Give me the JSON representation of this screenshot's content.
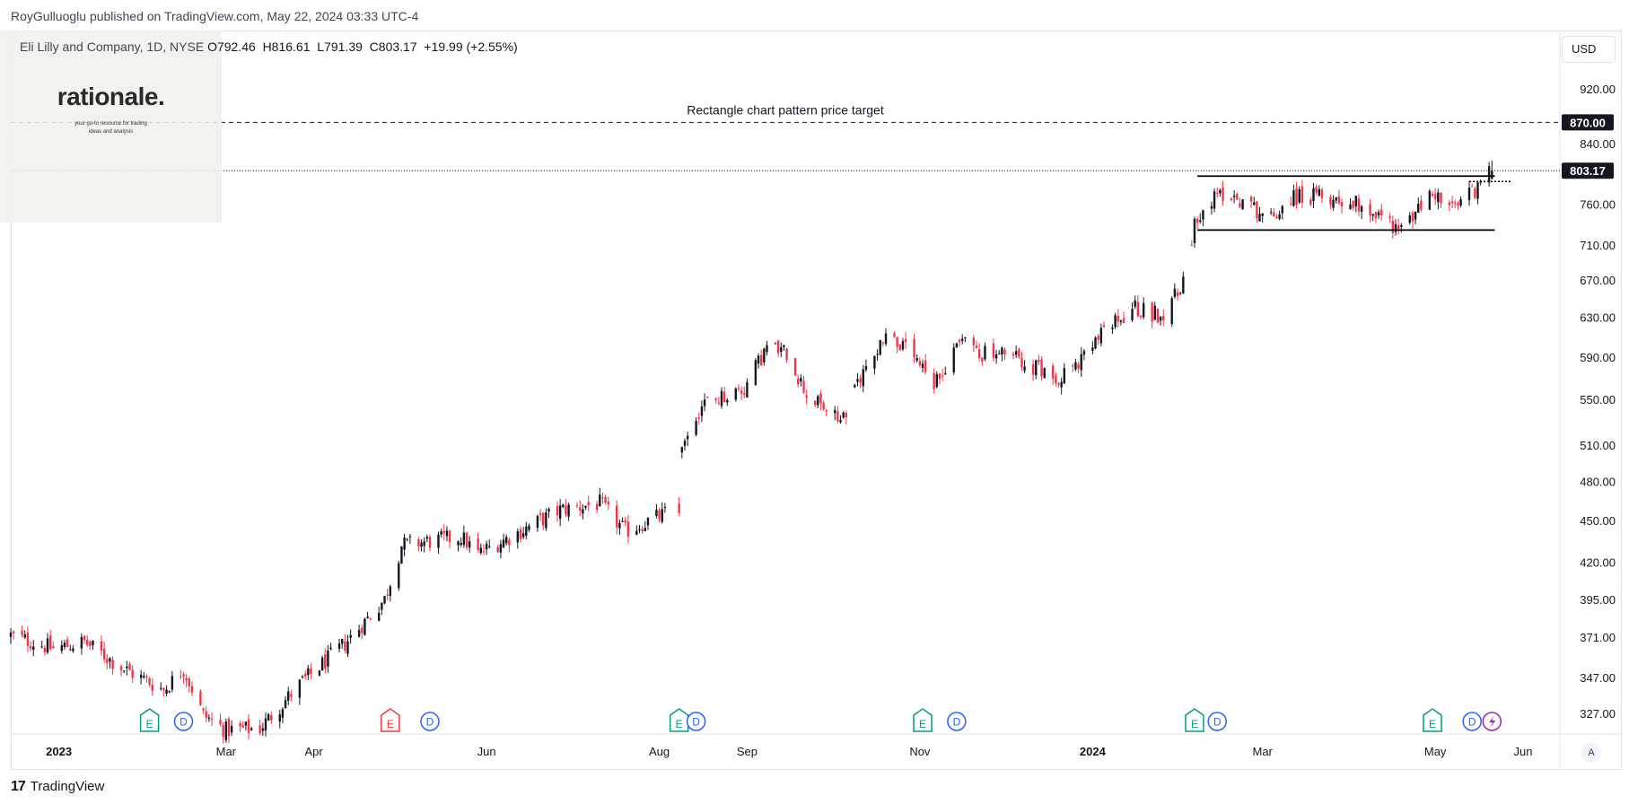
{
  "header": {
    "published_by": "RoyGulluoglu published on TradingView.com, May 22, 2024 03:33 UTC-4"
  },
  "legend": {
    "symbol": "Eli Lilly and Company, 1D, NYSE",
    "open": "O792.46",
    "high": "H816.61",
    "low": "L791.39",
    "close": "C803.17",
    "change": "+19.99 (+2.55%)"
  },
  "logo": {
    "word": "rationale.",
    "tagline_1": "your go-to resource for trading",
    "tagline_2": "ideas and analysis"
  },
  "currency_button": "USD",
  "auto_scale_button": "A",
  "footer": {
    "brand": "TradingView",
    "brand_mark": "17"
  },
  "colors": {
    "up": "#131722",
    "down": "#f23645",
    "earnings": "#089981",
    "earnings_down": "#f23645",
    "dividend": "#2962ff",
    "split": "#9c27b0"
  },
  "chart_data": {
    "type": "candlestick",
    "y_scale": "log",
    "ylim": [
      316,
      1010
    ],
    "x_range": [
      "2022-12-15",
      "2024-06-14"
    ],
    "y_ticks": [
      "920.00",
      "840.00",
      "760.00",
      "710.00",
      "670.00",
      "630.00",
      "590.00",
      "550.00",
      "510.00",
      "480.00",
      "450.00",
      "420.00",
      "395.00",
      "371.00",
      "347.00",
      "327.00"
    ],
    "x_ticks": [
      {
        "label": "2023",
        "date": "2023-01-01",
        "bold": true
      },
      {
        "label": "Mar",
        "date": "2023-03-01"
      },
      {
        "label": "Apr",
        "date": "2023-04-01"
      },
      {
        "label": "Jun",
        "date": "2023-06-01"
      },
      {
        "label": "Aug",
        "date": "2023-08-01"
      },
      {
        "label": "Sep",
        "date": "2023-09-01"
      },
      {
        "label": "Nov",
        "date": "2023-11-01"
      },
      {
        "label": "2024",
        "date": "2024-01-01",
        "bold": true
      },
      {
        "label": "Mar",
        "date": "2024-03-01"
      },
      {
        "label": "May",
        "date": "2024-05-01"
      },
      {
        "label": "Jun",
        "date": "2024-06-01"
      }
    ],
    "price_labels": [
      {
        "value": 870,
        "text": "870.00"
      },
      {
        "value": 803.17,
        "text": "803.17"
      }
    ],
    "annotations": [
      {
        "text": "Rectangle chart pattern price target",
        "value": 870
      }
    ],
    "rectangle": {
      "top": 796,
      "bottom": 728,
      "start": "2024-02-07",
      "end": "2024-05-22"
    },
    "resistance_dotted": {
      "value": 789,
      "start": "2024-05-13",
      "end": "2024-05-28"
    },
    "waypoints": [
      [
        "2022-12-15",
        372
      ],
      [
        "2022-12-30",
        364
      ],
      [
        "2023-01-10",
        368
      ],
      [
        "2023-01-24",
        352
      ],
      [
        "2023-02-07",
        340
      ],
      [
        "2023-02-14",
        352
      ],
      [
        "2023-02-21",
        326
      ],
      [
        "2023-03-01",
        318
      ],
      [
        "2023-03-13",
        319
      ],
      [
        "2023-03-27",
        343
      ],
      [
        "2023-04-12",
        367
      ],
      [
        "2023-04-26",
        395
      ],
      [
        "2023-05-02",
        432
      ],
      [
        "2023-05-23",
        438
      ],
      [
        "2023-05-29",
        426
      ],
      [
        "2023-06-13",
        442
      ],
      [
        "2023-06-27",
        458
      ],
      [
        "2023-07-11",
        463
      ],
      [
        "2023-07-20",
        442
      ],
      [
        "2023-08-03",
        455
      ],
      [
        "2023-08-08",
        455
      ],
      [
        "2023-08-09",
        512
      ],
      [
        "2023-08-16",
        545
      ],
      [
        "2023-08-31",
        560
      ],
      [
        "2023-09-08",
        600
      ],
      [
        "2023-09-15",
        594
      ],
      [
        "2023-09-22",
        555
      ],
      [
        "2023-10-04",
        530
      ],
      [
        "2023-10-11",
        570
      ],
      [
        "2023-10-20",
        615
      ],
      [
        "2023-10-30",
        588
      ],
      [
        "2023-11-06",
        560
      ],
      [
        "2023-11-15",
        610
      ],
      [
        "2023-11-22",
        594
      ],
      [
        "2023-12-05",
        590
      ],
      [
        "2023-12-13",
        578
      ],
      [
        "2023-12-20",
        572
      ],
      [
        "2023-12-28",
        585
      ],
      [
        "2024-01-04",
        612
      ],
      [
        "2024-01-16",
        640
      ],
      [
        "2024-01-25",
        632
      ],
      [
        "2024-02-01",
        660
      ],
      [
        "2024-02-07",
        748
      ],
      [
        "2024-02-16",
        775
      ],
      [
        "2024-02-23",
        765
      ],
      [
        "2024-03-04",
        742
      ],
      [
        "2024-03-11",
        770
      ],
      [
        "2024-03-25",
        768
      ],
      [
        "2024-04-05",
        760
      ],
      [
        "2024-04-19",
        728
      ],
      [
        "2024-04-30",
        775
      ],
      [
        "2024-05-07",
        752
      ],
      [
        "2024-05-16",
        783
      ],
      [
        "2024-05-21",
        803
      ]
    ],
    "gaps": [
      [
        "2023-08-04",
        "2023-08-08"
      ]
    ],
    "events": [
      {
        "type": "E",
        "date": "2023-02-02"
      },
      {
        "type": "D",
        "date": "2023-02-14"
      },
      {
        "type": "E",
        "date": "2023-04-28",
        "negative": true
      },
      {
        "type": "D",
        "date": "2023-05-12"
      },
      {
        "type": "E",
        "date": "2023-08-08"
      },
      {
        "type": "D",
        "date": "2023-08-14"
      },
      {
        "type": "E",
        "date": "2023-11-02"
      },
      {
        "type": "D",
        "date": "2023-11-14"
      },
      {
        "type": "E",
        "date": "2024-02-06"
      },
      {
        "type": "D",
        "date": "2024-02-14"
      },
      {
        "type": "E",
        "date": "2024-04-30"
      },
      {
        "type": "D",
        "date": "2024-05-14"
      },
      {
        "type": "S",
        "date": "2024-05-21"
      }
    ]
  }
}
